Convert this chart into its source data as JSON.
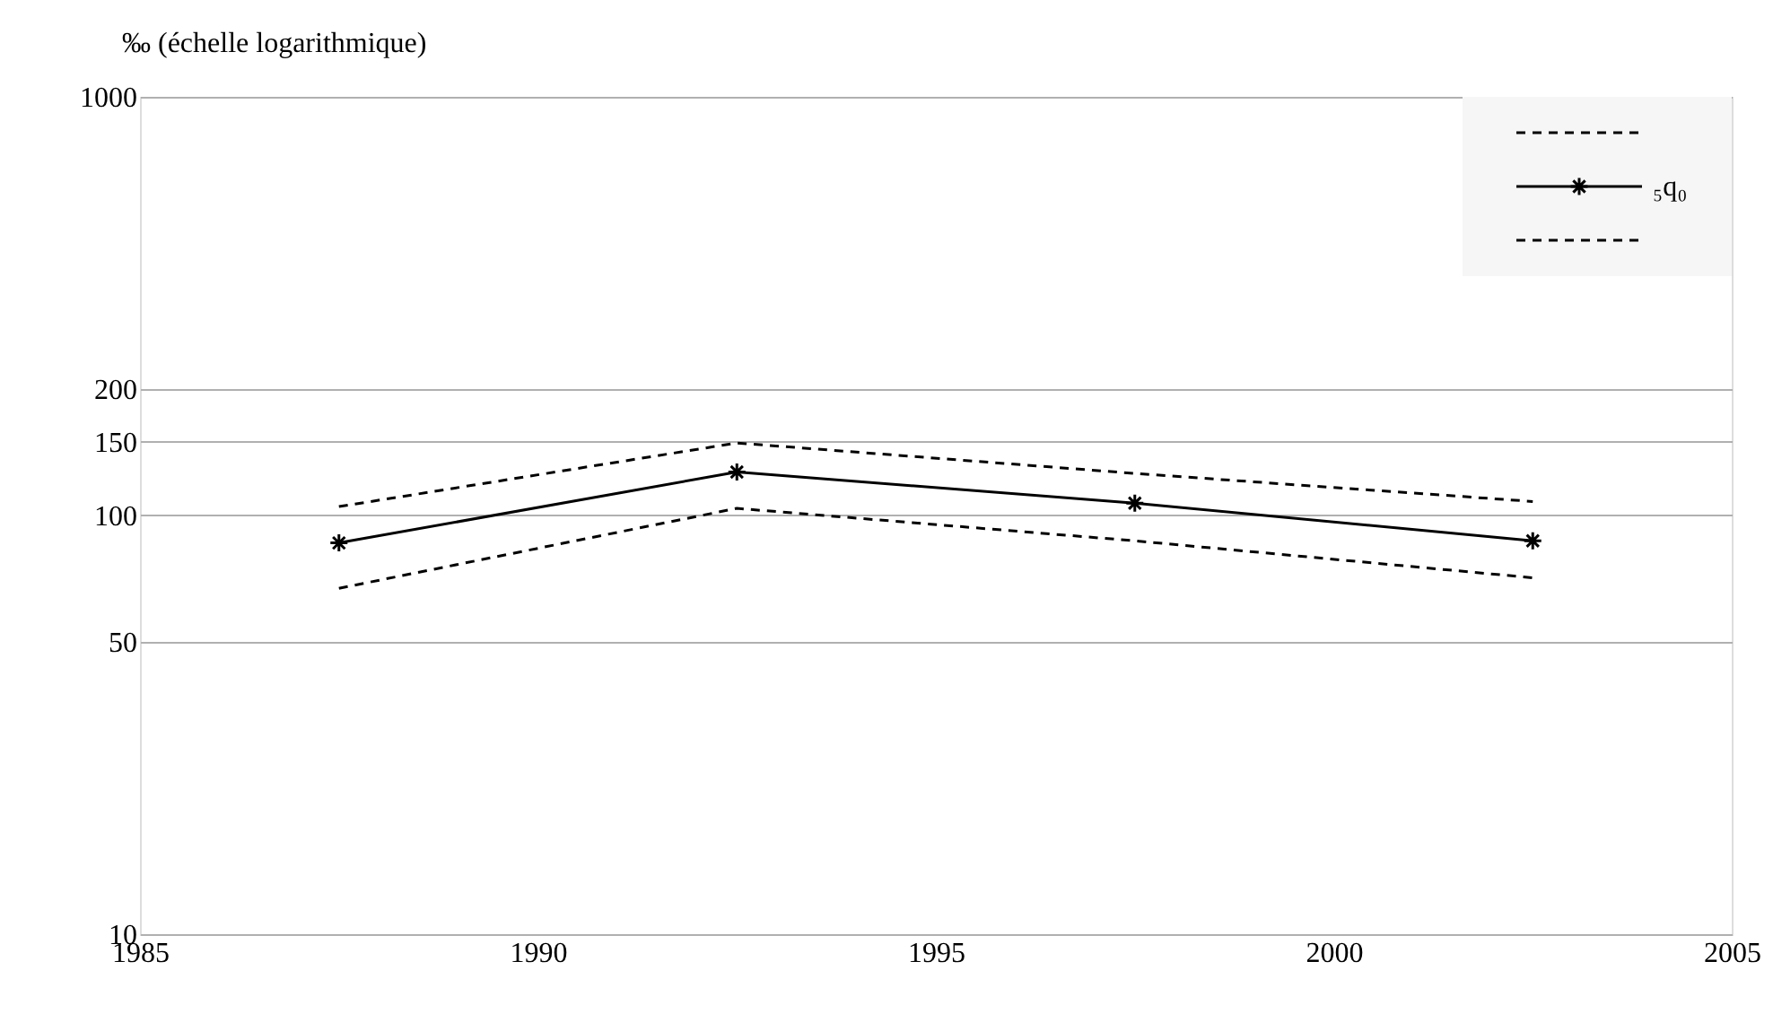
{
  "chart_data": {
    "type": "line",
    "ylabel": "‰ (échelle logarithmique)",
    "x": [
      1987.5,
      1992.5,
      1997.5,
      2002.5
    ],
    "series": [
      {
        "color": "#000000",
        "line_style": "dashed",
        "marker": "none",
        "values": [
          105,
          149,
          126,
          108
        ]
      },
      {
        "name": "₅q₀",
        "color": "#000000",
        "line_style": "solid",
        "marker": "cross",
        "values": [
          86,
          127,
          107,
          87
        ]
      },
      {
        "color": "#000000",
        "line_style": "dashed",
        "marker": "none",
        "values": [
          67,
          104,
          87,
          71
        ]
      }
    ],
    "xlim": [
      1985,
      2005
    ],
    "xticks": [
      1985,
      1990,
      1995,
      2000,
      2005
    ],
    "ylim": [
      10,
      1000
    ],
    "yticks": [
      10,
      50,
      100,
      150,
      200,
      1000
    ],
    "log": "y",
    "grid": "y",
    "legend": "top right"
  }
}
